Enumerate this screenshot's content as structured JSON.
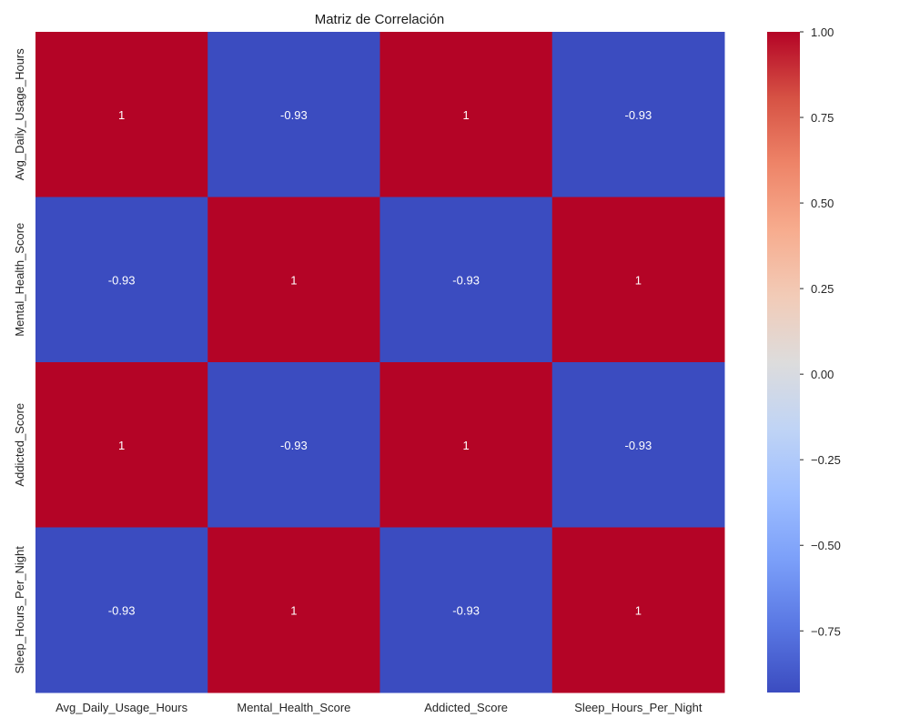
{
  "chart_data": {
    "type": "heatmap",
    "title": "Matriz de Correlación",
    "variables": [
      "Avg_Daily_Usage_Hours",
      "Mental_Health_Score",
      "Addicted_Score",
      "Sleep_Hours_Per_Night"
    ],
    "x_labels": [
      "Avg_Daily_Usage_Hours",
      "Mental_Health_Score",
      "Addicted_Score",
      "Sleep_Hours_Per_Night"
    ],
    "y_labels": [
      "Avg_Daily_Usage_Hours",
      "Mental_Health_Score",
      "Addicted_Score",
      "Sleep_Hours_Per_Night"
    ],
    "values": [
      [
        1,
        -0.93,
        1,
        -0.93
      ],
      [
        -0.93,
        1,
        -0.93,
        1
      ],
      [
        1,
        -0.93,
        1,
        -0.93
      ],
      [
        -0.93,
        1,
        -0.93,
        1
      ]
    ],
    "annotations": [
      [
        "1",
        "-0.93",
        "1",
        "-0.93"
      ],
      [
        "-0.93",
        "1",
        "-0.93",
        "1"
      ],
      [
        "1",
        "-0.93",
        "1",
        "-0.93"
      ],
      [
        "-0.93",
        "1",
        "-0.93",
        "1"
      ]
    ],
    "colormap": "coolwarm",
    "colorbar": {
      "range": [
        -0.93,
        1.0
      ],
      "ticks": [
        1.0,
        0.75,
        0.5,
        0.25,
        0.0,
        -0.25,
        -0.5,
        -0.75
      ],
      "tick_labels": [
        "1.00",
        "0.75",
        "0.50",
        "0.25",
        "0.00",
        "−0.25",
        "−0.50",
        "−0.75"
      ],
      "position": "right"
    },
    "grid": false
  }
}
